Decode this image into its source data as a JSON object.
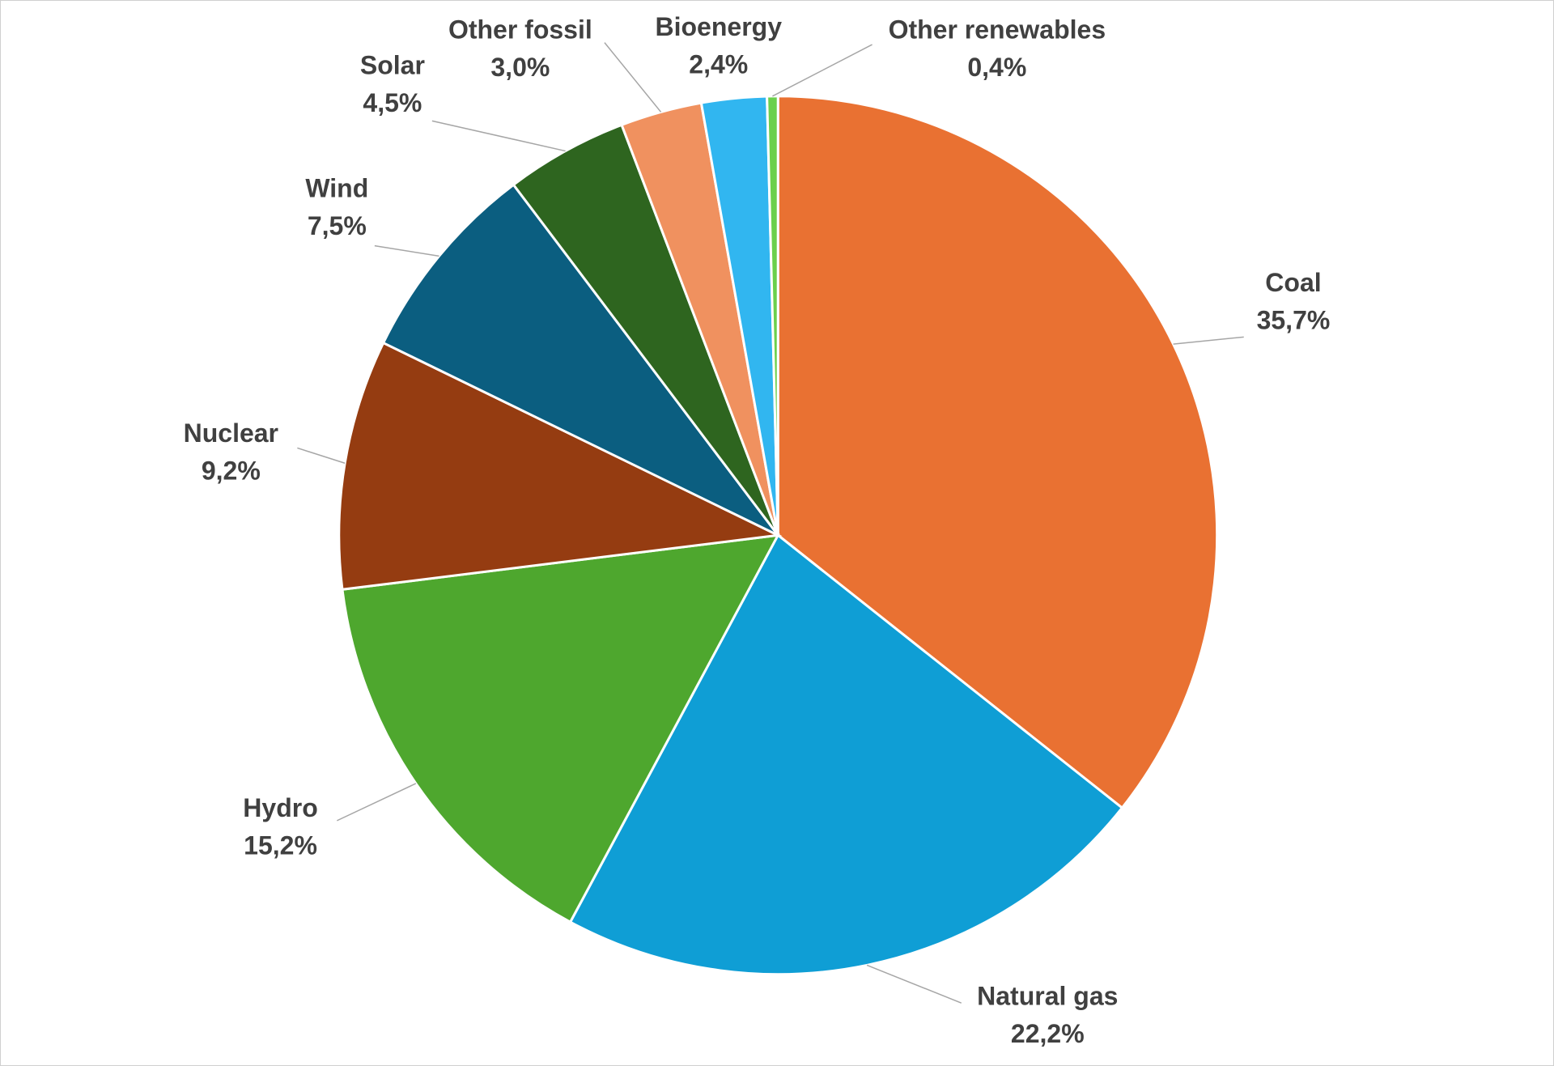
{
  "chart_data": {
    "type": "pie",
    "categories": [
      "Coal",
      "Natural gas",
      "Hydro",
      "Nuclear",
      "Wind",
      "Solar",
      "Other fossil",
      "Bioenergy",
      "Other renewables"
    ],
    "values": [
      35.7,
      22.2,
      15.2,
      9.2,
      7.5,
      4.5,
      3.0,
      2.4,
      0.4
    ],
    "value_labels": [
      "35,7%",
      "22,2%",
      "15,2%",
      "9,2%",
      "7,5%",
      "4,5%",
      "3,0%",
      "2,4%",
      "0,4%"
    ],
    "colors": [
      "#e97132",
      "#0f9ed5",
      "#4ea72e",
      "#953c11",
      "#0b5e80",
      "#2e651f",
      "#f0915f",
      "#31b6f0",
      "#6bd04c"
    ]
  }
}
